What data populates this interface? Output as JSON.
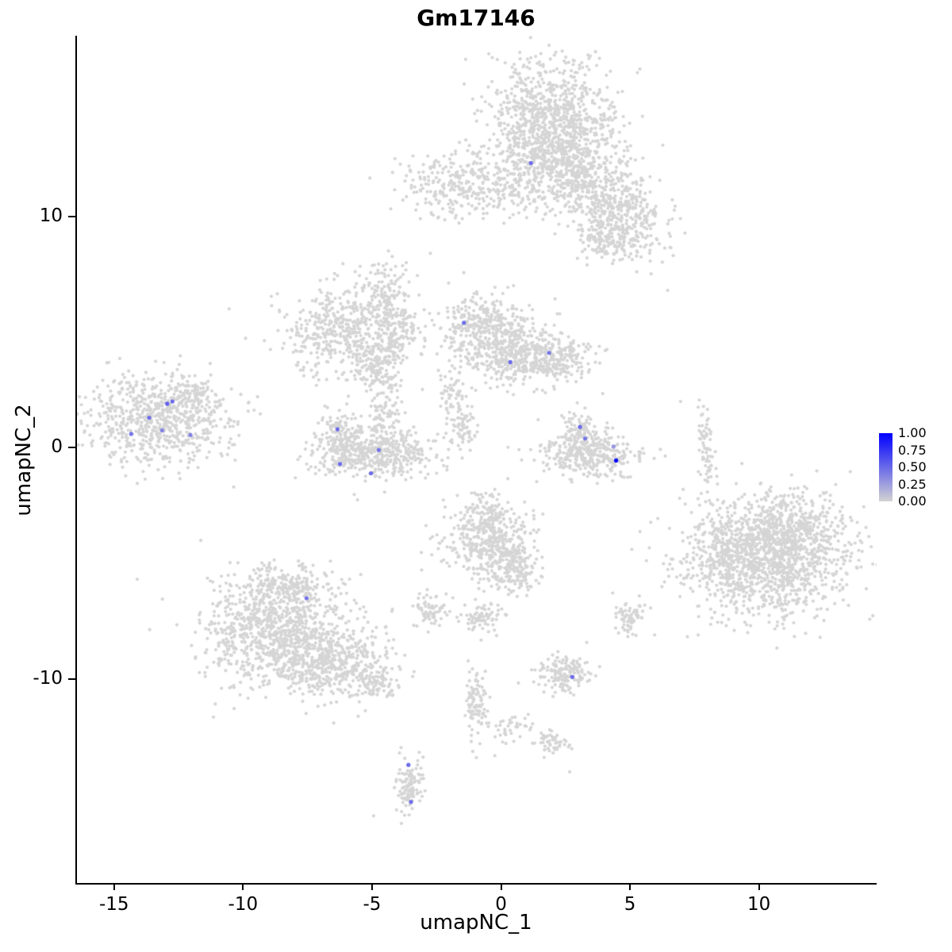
{
  "title": "Gm17146",
  "axes": {
    "xlabel": "umapNC_1",
    "ylabel": "umapNC_2",
    "x_ticks": [
      -15,
      -10,
      -5,
      0,
      5,
      10
    ],
    "y_ticks": [
      10,
      0,
      -10
    ]
  },
  "legend": {
    "tick_labels": [
      "1.00",
      "0.75",
      "0.50",
      "0.25",
      "0.00"
    ],
    "color_high": "#0000FF",
    "color_low": "#D3D3D3"
  },
  "chart_data": {
    "type": "scatter",
    "title": "Gm17146",
    "xlabel": "umapNC_1",
    "ylabel": "umapNC_2",
    "xlim": [
      -16.5,
      14.5
    ],
    "ylim": [
      -18.8,
      17.8
    ],
    "grid": false,
    "legend_position": "right",
    "point_color_zero": "#D5D5D5",
    "point_radius": 2.1,
    "expressing_point_radius": 2.6,
    "value_range": [
      0.0,
      1.0
    ],
    "clusters": [
      {
        "x": 1.8,
        "y": 14.2,
        "sx": 1.3,
        "sy": 1.3,
        "n": 850
      },
      {
        "x": 2.2,
        "y": 12.3,
        "sx": 1.0,
        "sy": 0.9,
        "n": 400
      },
      {
        "x": 3.8,
        "y": 11.0,
        "sx": 0.9,
        "sy": 0.8,
        "n": 300
      },
      {
        "x": 4.8,
        "y": 9.6,
        "sx": 0.8,
        "sy": 0.7,
        "n": 260
      },
      {
        "x": 3.8,
        "y": 9.0,
        "sx": 0.5,
        "sy": 0.5,
        "n": 80
      },
      {
        "x": -1.8,
        "y": 11.3,
        "sx": 1.1,
        "sy": 0.7,
        "n": 260
      },
      {
        "x": 0.3,
        "y": 11.2,
        "sx": 0.9,
        "sy": 0.6,
        "n": 90
      },
      {
        "x": -6.2,
        "y": 5.1,
        "sx": 1.2,
        "sy": 0.9,
        "n": 450
      },
      {
        "x": -4.5,
        "y": 6.7,
        "sx": 0.5,
        "sy": 0.8,
        "n": 130
      },
      {
        "x": -5.1,
        "y": 3.5,
        "sx": 0.5,
        "sy": 0.6,
        "n": 110
      },
      {
        "x": -4.2,
        "y": 5.0,
        "sx": 0.6,
        "sy": 0.6,
        "n": 120
      },
      {
        "x": -0.7,
        "y": 5.1,
        "sx": 0.8,
        "sy": 0.8,
        "n": 350
      },
      {
        "x": 0.6,
        "y": 4.1,
        "sx": 1.0,
        "sy": 0.7,
        "n": 380
      },
      {
        "x": 2.2,
        "y": 3.8,
        "sx": 0.7,
        "sy": 0.5,
        "n": 150
      },
      {
        "x": -1.9,
        "y": 2.0,
        "sx": 0.3,
        "sy": 0.6,
        "n": 60
      },
      {
        "x": -1.5,
        "y": 0.8,
        "sx": 0.3,
        "sy": 0.5,
        "n": 50
      },
      {
        "x": -13.3,
        "y": 1.2,
        "sx": 1.4,
        "sy": 1.0,
        "n": 700
      },
      {
        "x": -12.0,
        "y": 2.4,
        "sx": 0.4,
        "sy": 0.4,
        "n": 80
      },
      {
        "x": -5.0,
        "y": -0.2,
        "sx": 1.2,
        "sy": 0.6,
        "n": 520
      },
      {
        "x": -6.3,
        "y": 0.7,
        "sx": 0.35,
        "sy": 0.4,
        "n": 80
      },
      {
        "x": -4.6,
        "y": 1.5,
        "sx": 0.3,
        "sy": 0.6,
        "n": 60
      },
      {
        "x": -4.4,
        "y": 3.0,
        "sx": 0.25,
        "sy": 0.8,
        "n": 40
      },
      {
        "x": 3.3,
        "y": -0.3,
        "sx": 0.9,
        "sy": 0.5,
        "n": 360
      },
      {
        "x": 2.9,
        "y": 0.9,
        "sx": 0.3,
        "sy": 0.4,
        "n": 70
      },
      {
        "x": 7.9,
        "y": 0.0,
        "sx": 0.15,
        "sy": 0.9,
        "n": 70
      },
      {
        "x": 10.2,
        "y": -4.7,
        "sx": 1.6,
        "sy": 1.3,
        "n": 1250
      },
      {
        "x": 11.3,
        "y": -3.6,
        "sx": 1.0,
        "sy": 0.8,
        "n": 300
      },
      {
        "x": 8.7,
        "y": -4.8,
        "sx": 0.5,
        "sy": 0.8,
        "n": 150
      },
      {
        "x": -8.8,
        "y": -8.0,
        "sx": 1.4,
        "sy": 1.1,
        "n": 900
      },
      {
        "x": -6.6,
        "y": -9.3,
        "sx": 1.1,
        "sy": 0.7,
        "n": 430
      },
      {
        "x": -8.5,
        "y": -5.9,
        "sx": 0.8,
        "sy": 0.5,
        "n": 200
      },
      {
        "x": -4.9,
        "y": -10.2,
        "sx": 0.4,
        "sy": 0.4,
        "n": 80
      },
      {
        "x": -0.5,
        "y": -4.1,
        "sx": 0.9,
        "sy": 0.8,
        "n": 400
      },
      {
        "x": 0.6,
        "y": -5.3,
        "sx": 0.5,
        "sy": 0.5,
        "n": 120
      },
      {
        "x": -0.7,
        "y": -2.9,
        "sx": 0.4,
        "sy": 0.5,
        "n": 100
      },
      {
        "x": -2.8,
        "y": -7.0,
        "sx": 0.35,
        "sy": 0.35,
        "n": 70
      },
      {
        "x": -0.8,
        "y": -7.3,
        "sx": 0.4,
        "sy": 0.3,
        "n": 80
      },
      {
        "x": -1.0,
        "y": -10.8,
        "sx": 0.2,
        "sy": 0.8,
        "n": 90
      },
      {
        "x": 2.4,
        "y": -9.8,
        "sx": 0.55,
        "sy": 0.4,
        "n": 160
      },
      {
        "x": 4.9,
        "y": -7.3,
        "sx": 0.3,
        "sy": 0.35,
        "n": 70
      },
      {
        "x": 0.3,
        "y": -12.0,
        "sx": 0.5,
        "sy": 0.3,
        "n": 40
      },
      {
        "x": 1.9,
        "y": -12.7,
        "sx": 0.35,
        "sy": 0.25,
        "n": 50
      },
      {
        "x": -3.6,
        "y": -14.6,
        "sx": 0.25,
        "sy": 0.6,
        "n": 110
      }
    ],
    "singles": [
      [
        -10.6,
        6.0
      ],
      [
        -2.8,
        8.4
      ],
      [
        6.4,
        6.8
      ],
      [
        -5.0,
        -15.9
      ],
      [
        -5.6,
        -11.6
      ],
      [
        5.3,
        -6.4
      ],
      [
        2.6,
        -14.0
      ],
      [
        -0.3,
        -13.3
      ],
      [
        7.0,
        -1.8
      ],
      [
        -9.5,
        2.2
      ],
      [
        -11.7,
        -4.0
      ],
      [
        6.9,
        2.0
      ],
      [
        -2.9,
        12.6
      ],
      [
        5.2,
        7.6
      ]
    ],
    "expressing_cells": [
      {
        "x": 1.1,
        "y": 12.3,
        "value": 0.5
      },
      {
        "x": -1.5,
        "y": 5.4,
        "value": 0.5
      },
      {
        "x": 0.3,
        "y": 3.7,
        "value": 0.5
      },
      {
        "x": 1.8,
        "y": 4.1,
        "value": 0.45
      },
      {
        "x": -13.7,
        "y": 1.3,
        "value": 0.5
      },
      {
        "x": -13.0,
        "y": 1.9,
        "value": 0.55
      },
      {
        "x": -12.8,
        "y": 2.0,
        "value": 0.5
      },
      {
        "x": -13.2,
        "y": 0.75,
        "value": 0.4
      },
      {
        "x": -14.4,
        "y": 0.6,
        "value": 0.45
      },
      {
        "x": -12.1,
        "y": 0.55,
        "value": 0.4
      },
      {
        "x": -6.4,
        "y": 0.8,
        "value": 0.5
      },
      {
        "x": -6.3,
        "y": -0.7,
        "value": 0.5
      },
      {
        "x": -5.1,
        "y": -1.1,
        "value": 0.5
      },
      {
        "x": -4.8,
        "y": -0.1,
        "value": 0.45
      },
      {
        "x": 3.0,
        "y": 0.9,
        "value": 0.5
      },
      {
        "x": 3.2,
        "y": 0.4,
        "value": 0.45
      },
      {
        "x": 4.4,
        "y": -0.55,
        "value": 1.0
      },
      {
        "x": 4.3,
        "y": 0.05,
        "value": 0.3
      },
      {
        "x": -7.6,
        "y": -6.5,
        "value": 0.45
      },
      {
        "x": 2.7,
        "y": -9.9,
        "value": 0.5
      },
      {
        "x": -3.65,
        "y": -13.7,
        "value": 0.5
      },
      {
        "x": -3.55,
        "y": -15.3,
        "value": 0.5
      }
    ]
  }
}
